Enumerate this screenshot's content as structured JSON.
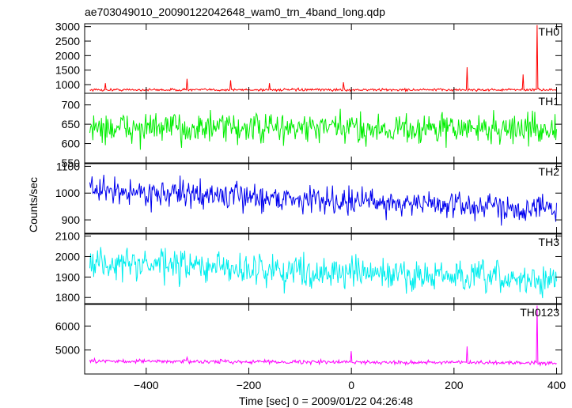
{
  "chart_data": {
    "type": "line",
    "title": "ae703049010_20090122042648_wam0_trn_4band_long.qdp",
    "xlabel": "Time [sec] 0 = 2009/01/22 04:26:48",
    "ylabel": "Counts/sec",
    "xlim": [
      -520,
      410
    ],
    "xticks": [
      -400,
      -200,
      0,
      200,
      400
    ],
    "xtick_labels": [
      "−400",
      "−200",
      "0",
      "200",
      "400"
    ],
    "grid": false,
    "panels": [
      {
        "name": "TH0",
        "color": "#ff0000",
        "ylim": [
          700,
          3100
        ],
        "yticks": [
          1000,
          1500,
          2000,
          2500,
          3000
        ],
        "ytick_labels": [
          "1000",
          "1500",
          "2000",
          "2500",
          "3000"
        ],
        "base": 820,
        "noise": 30,
        "trend": 0,
        "spikes": [
          [
            -480,
            1050
          ],
          [
            -320,
            1200
          ],
          [
            -235,
            1150
          ],
          [
            -160,
            1050
          ],
          [
            -15,
            1080
          ],
          [
            225,
            1600
          ],
          [
            335,
            1350
          ],
          [
            362,
            3050
          ]
        ]
      },
      {
        "name": "TH1",
        "color": "#00ee00",
        "ylim": [
          550,
          730
        ],
        "yticks": [
          550,
          600,
          650,
          700
        ],
        "ytick_labels": [
          "550",
          "600",
          "650",
          "700"
        ],
        "base": 640,
        "noise": 28,
        "trend": -2,
        "spikes": []
      },
      {
        "name": "TH2",
        "color": "#0000ee",
        "ylim": [
          850,
          1110
        ],
        "yticks": [
          900,
          1000,
          1100
        ],
        "ytick_labels": [
          "900",
          "1000",
          "1100"
        ],
        "base": 1010,
        "noise": 35,
        "trend": -70,
        "spikes": []
      },
      {
        "name": "TH3",
        "color": "#00eeee",
        "ylim": [
          1770,
          2110
        ],
        "yticks": [
          1800,
          1900,
          2000,
          2100
        ],
        "ytick_labels": [
          "1800",
          "1900",
          "2000",
          "2100"
        ],
        "base": 1970,
        "noise": 55,
        "trend": -90,
        "spikes": []
      },
      {
        "name": "TH0123",
        "color": "#ff00ff",
        "ylim": [
          4000,
          6900
        ],
        "yticks": [
          5000,
          6000
        ],
        "ytick_labels": [
          "5000",
          "6000"
        ],
        "base": 4540,
        "noise": 55,
        "trend": -80,
        "spikes": [
          [
            -320,
            4700
          ],
          [
            0,
            4950
          ],
          [
            225,
            5150
          ],
          [
            362,
            6850
          ]
        ]
      }
    ]
  }
}
